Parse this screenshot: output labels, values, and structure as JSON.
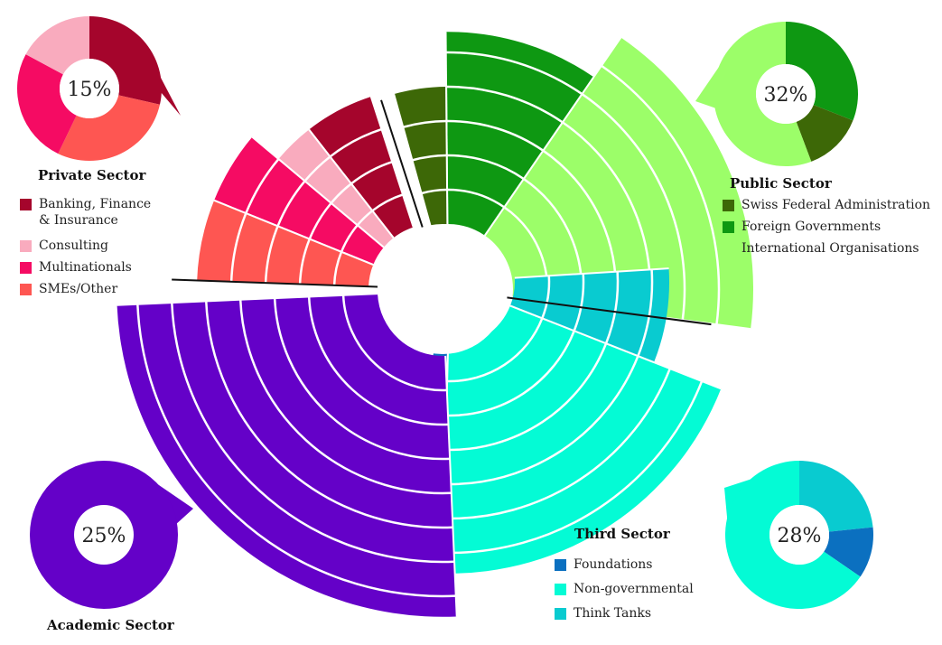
{
  "chart_data": {
    "type": "polar-area",
    "title": "",
    "rings": 5,
    "sectors": [
      {
        "id": "private",
        "name": "Private Sector",
        "share_label": "15%",
        "categories": [
          {
            "name": "Banking, Finance & Insurance",
            "color": "#a5052c",
            "value": 4,
            "span_deg": 20
          },
          {
            "name": "Consulting",
            "color": "#f9abbe",
            "value": 4,
            "span_deg": 12
          },
          {
            "name": "Multinationals",
            "color": "#f50b63",
            "value": 5,
            "span_deg": 18
          },
          {
            "name": "SMEs/Other",
            "color": "#fe5652",
            "value": 5,
            "span_deg": 20
          }
        ]
      },
      {
        "id": "public",
        "name": "Public Sector",
        "share_label": "32%",
        "categories": [
          {
            "name": "Swiss Federal Administration",
            "color": "#3d6807",
            "value": 4,
            "span_deg": 15
          },
          {
            "name": "Foreign Governments",
            "color": "#0e9812",
            "value": 5.6,
            "span_deg": 35
          },
          {
            "name": "International Organisations",
            "color": "#9cfe69",
            "value": 7,
            "span_deg": 63
          }
        ]
      },
      {
        "id": "third",
        "name": "Third Sector",
        "share_label": "28%",
        "categories": [
          {
            "name": "Foundations",
            "color": "#0b70c0",
            "value": 2.2,
            "span_deg": 12
          },
          {
            "name": "Non-governmental",
            "color": "#04fbd5",
            "value": 6.6,
            "span_deg": 70
          },
          {
            "name": "Think Tanks",
            "color": "#09cbd0",
            "value": 4.5,
            "span_deg": 25
          }
        ]
      },
      {
        "id": "academic",
        "name": "Academic Sector",
        "share_label": "25%",
        "categories": [
          {
            "name": "Academic",
            "color": "#6401c8",
            "value": 7.6,
            "span_deg": 90
          }
        ]
      }
    ]
  }
}
